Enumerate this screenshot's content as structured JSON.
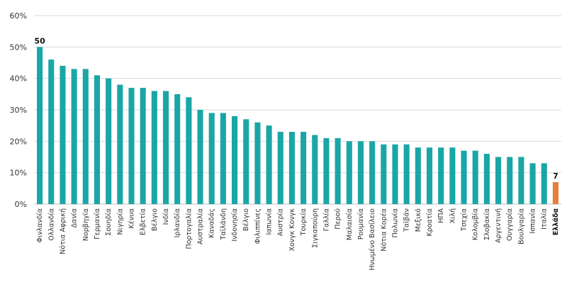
{
  "chart_data": {
    "type": "bar",
    "title": "",
    "xlabel": "",
    "ylabel": "",
    "ylim": [
      0,
      60
    ],
    "yticks": [
      "0%",
      "10%",
      "20%",
      "30%",
      "40%",
      "50%",
      "60%"
    ],
    "grid": true,
    "categories": [
      "Φινλανδία",
      "Ολλανδία",
      "Νότια Αφρική",
      "Δανία",
      "Νορβηγία",
      "Γερμανία",
      "Σουηδία",
      "Νιγηρία",
      "Κένυα",
      "Ελβετία",
      "Βέλγιο",
      "Ινδία",
      "Ιρλανδία",
      "Πορτογαλία",
      "Αυστραλία",
      "Καναδάς",
      "Ταϊλάνδη",
      "Ινδονησία",
      "Βέλγιο",
      "Φιλιππίνες",
      "Ιαπωνία",
      "Αυστρία",
      "Χονγκ Κονγκ",
      "Τουρκία",
      "Σιγκαπούρη",
      "Γαλλία",
      "Περού",
      "Μαλαισία",
      "Ρουμανία",
      "Ηνωμένο Βασίλειο",
      "Νότια Κορέα",
      "Πολωνία",
      "Ταϊβάν",
      "Μεξικό",
      "Κροατία",
      "ΗΠΑ",
      "Χιλή",
      "Τσεχία",
      "Κολομβία",
      "Σλοβακία",
      "Αργεντινή",
      "Ουγγαρία",
      "Βουλγαρία",
      "Ισπανία",
      "Ιταλία",
      "Ελλάδα"
    ],
    "values": [
      50,
      46,
      44,
      43,
      43,
      41,
      40,
      38,
      37,
      37,
      36,
      36,
      35,
      34,
      30,
      29,
      29,
      28,
      27,
      26,
      25,
      23,
      23,
      23,
      22,
      21,
      21,
      20,
      20,
      20,
      19,
      19,
      19,
      18,
      18,
      18,
      18,
      17,
      17,
      16,
      15,
      15,
      15,
      13,
      13,
      7
    ],
    "data_labels": [
      {
        "category": "Φινλανδία",
        "text": "50"
      },
      {
        "category": "Ελλάδα",
        "text": "7"
      }
    ],
    "colors": {
      "default": "#1aa6a6",
      "highlight": "#e67e3c"
    },
    "highlight_category": "Ελλάδα"
  }
}
